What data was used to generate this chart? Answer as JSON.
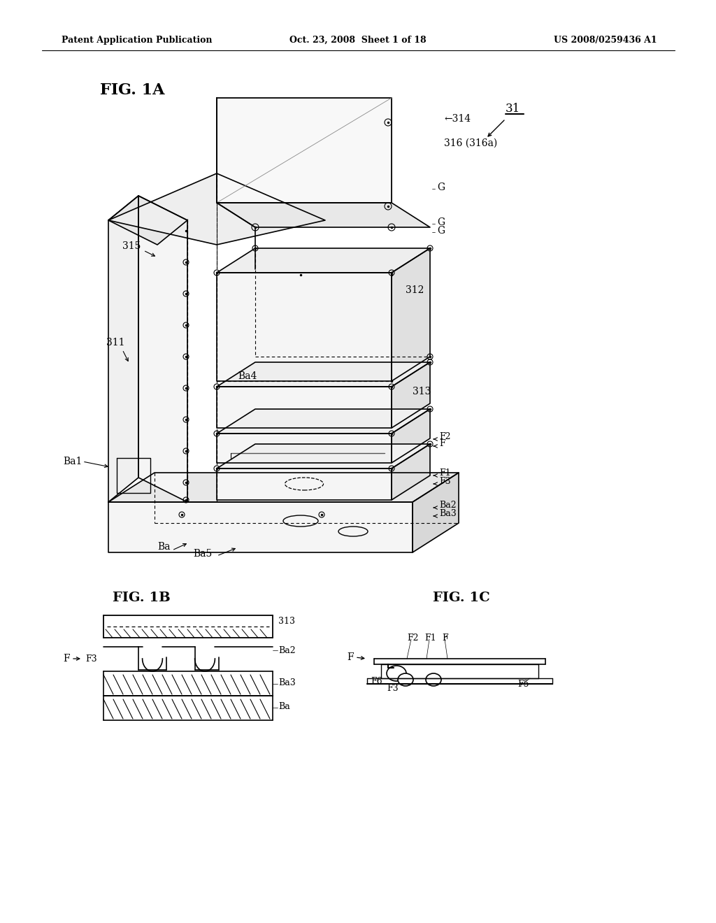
{
  "background_color": "#ffffff",
  "header_left": "Patent Application Publication",
  "header_center": "Oct. 23, 2008  Sheet 1 of 18",
  "header_right": "US 2008/0259436 A1",
  "fig1a_label": "FIG. 1A",
  "fig1b_label": "FIG. 1B",
  "fig1c_label": "FIG. 1C"
}
